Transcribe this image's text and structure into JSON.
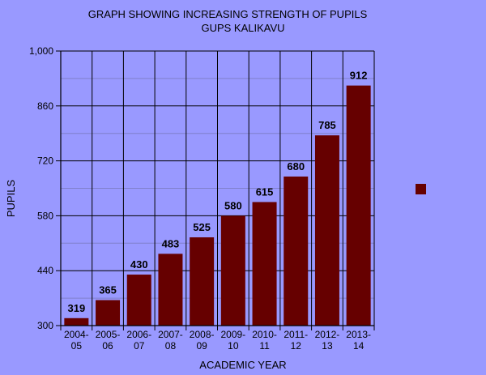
{
  "chart_data": {
    "type": "bar",
    "title": "GRAPH SHOWING INCREASING STRENGTH OF PUPILS",
    "subtitle": "GUPS KALIKAVU",
    "xlabel": "ACADEMIC YEAR",
    "ylabel": "PUPILS",
    "categories": [
      [
        "2004-",
        "05"
      ],
      [
        "2005-",
        "06"
      ],
      [
        "2006-",
        "07"
      ],
      [
        "2007-",
        "08"
      ],
      [
        "2008-",
        "09"
      ],
      [
        "2009-",
        "10"
      ],
      [
        "2010-",
        "11"
      ],
      [
        "2011-",
        "12"
      ],
      [
        "2012-",
        "13"
      ],
      [
        "2013-",
        "14"
      ]
    ],
    "values": [
      319,
      365,
      430,
      483,
      525,
      580,
      615,
      680,
      785,
      912
    ],
    "ylim": [
      300,
      1000
    ],
    "yticks": [
      300,
      440,
      580,
      720,
      860,
      1000
    ],
    "ytick_labels": [
      "300",
      "440",
      "580",
      "720",
      "860",
      "1,000"
    ],
    "grid": true,
    "legend_position": "right",
    "colors": {
      "background": "#9999ff",
      "bar": "#660000",
      "axis": "#000000",
      "grid": "#000000",
      "minor_grid": "#8080cc"
    }
  }
}
